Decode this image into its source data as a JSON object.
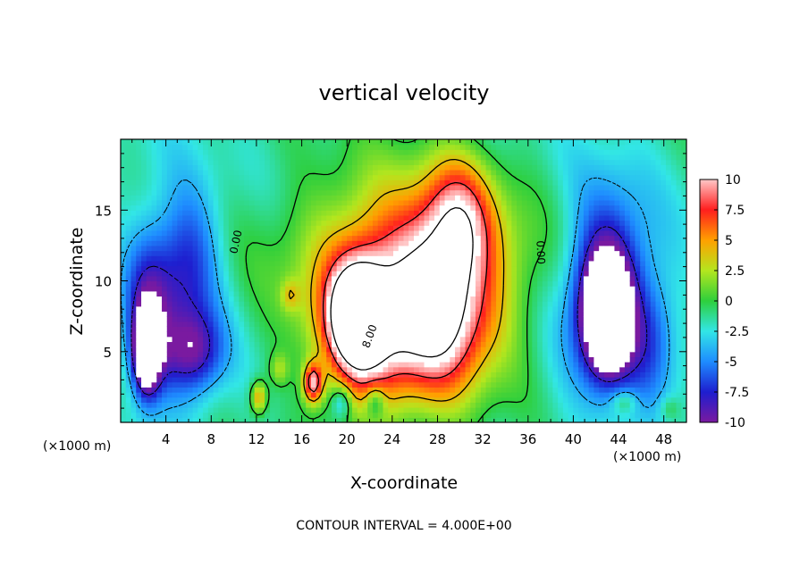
{
  "chart_data": {
    "type": "heatmap",
    "title": "vertical velocity",
    "xlabel": "X-coordinate",
    "ylabel": "Z-coordinate",
    "x_unit": "(×1000 m)",
    "x_unit_right": "(×1000 m)",
    "xlim": [
      0,
      50
    ],
    "ylim": [
      0,
      20
    ],
    "x_ticks": [
      4,
      8,
      12,
      16,
      20,
      24,
      28,
      32,
      36,
      40,
      44,
      48
    ],
    "y_ticks": [
      5,
      10,
      15
    ],
    "contour_interval_text": "CONTOUR INTERVAL =  4.000E+00",
    "contour_labels": [
      "0.00",
      "0.00",
      "8.00"
    ],
    "colorbar": {
      "min": -10,
      "max": 10,
      "tick_labels": [
        "10",
        "7.5",
        "5",
        "2.5",
        "0",
        "-2.5",
        "-5",
        "-7.5",
        "-10"
      ],
      "tick_values": [
        10,
        7.5,
        5,
        2.5,
        0,
        -2.5,
        -5,
        -7.5,
        -10
      ]
    },
    "features": [
      {
        "x": 2.3,
        "z": 5.0,
        "value": -12,
        "sx": 0.8,
        "sz": 2.0
      },
      {
        "x": 2.5,
        "z": 7.5,
        "value": -5,
        "sx": 1.4,
        "sz": 4.0
      },
      {
        "x": 6.0,
        "z": 11.5,
        "value": -4,
        "sx": 1.8,
        "sz": 3.5
      },
      {
        "x": 6.5,
        "z": 5.0,
        "value": -6,
        "sx": 1.8,
        "sz": 2.0
      },
      {
        "x": 4.5,
        "z": 8.0,
        "value": -3,
        "sx": 3.0,
        "sz": 6.0
      },
      {
        "x": 20.8,
        "z": 7.5,
        "value": 13,
        "sx": 1.6,
        "sz": 2.5
      },
      {
        "x": 22.0,
        "z": 6.0,
        "value": 6,
        "sx": 3.0,
        "sz": 4.0
      },
      {
        "x": 25.5,
        "z": 9.0,
        "value": 7,
        "sx": 6.0,
        "sz": 5.0
      },
      {
        "x": 28.5,
        "z": 8.5,
        "value": 7,
        "sx": 2.5,
        "sz": 4.5
      },
      {
        "x": 30.0,
        "z": 14.5,
        "value": 6,
        "sx": 2.0,
        "sz": 3.0
      },
      {
        "x": 27.0,
        "z": 7.0,
        "value": 3,
        "sx": 5.0,
        "sz": 3.0
      },
      {
        "x": 26.0,
        "z": 13.0,
        "value": 3,
        "sx": 8.0,
        "sz": 4.0
      },
      {
        "x": 17.0,
        "z": 2.8,
        "value": 10,
        "sx": 0.6,
        "sz": 1.0
      },
      {
        "x": 12.2,
        "z": 1.8,
        "value": 6,
        "sx": 0.5,
        "sz": 0.8
      },
      {
        "x": 14.0,
        "z": 3.8,
        "value": 3,
        "sx": 0.6,
        "sz": 0.8
      },
      {
        "x": 15.0,
        "z": 9.0,
        "value": 3,
        "sx": 0.6,
        "sz": 0.8
      },
      {
        "x": 43.0,
        "z": 7.5,
        "value": -12,
        "sx": 1.3,
        "sz": 2.5
      },
      {
        "x": 43.0,
        "z": 9.0,
        "value": -7,
        "sx": 2.0,
        "sz": 4.0
      },
      {
        "x": 43.0,
        "z": 9.0,
        "value": -4,
        "sx": 3.5,
        "sz": 6.0
      },
      {
        "x": 47.0,
        "z": 6.0,
        "value": -3,
        "sx": 1.5,
        "sz": 3.0
      },
      {
        "x": 19.5,
        "z": 1.5,
        "value": -4,
        "sx": 0.6,
        "sz": 0.8
      },
      {
        "x": 22.5,
        "z": 1.5,
        "value": -4,
        "sx": 0.6,
        "sz": 0.8
      },
      {
        "x": 44.5,
        "z": 1.5,
        "value": 3,
        "sx": 0.8,
        "sz": 0.6
      },
      {
        "x": 48.5,
        "z": 1.0,
        "value": 2,
        "sx": 0.6,
        "sz": 0.6
      }
    ]
  }
}
